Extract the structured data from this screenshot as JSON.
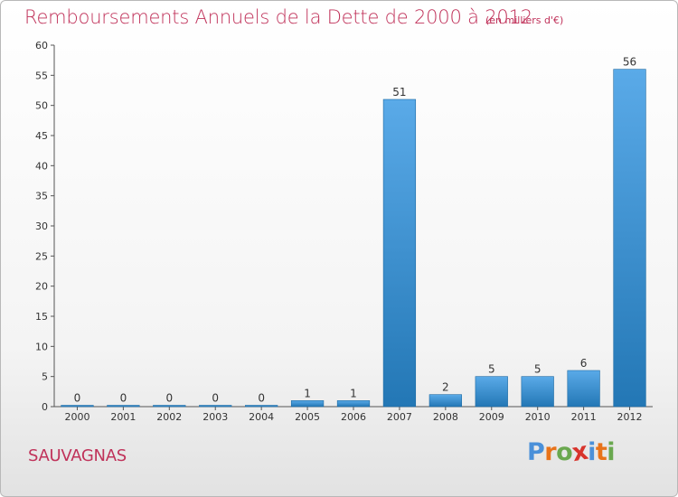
{
  "title": "Remboursements Annuels de la Dette de 2000 à 2012",
  "subtitle": "(en milliers d'€)",
  "commune": "SAUVAGNAS",
  "logo": {
    "text": "Proxiti",
    "letter_colors": [
      "#4a90d9",
      "#e8731a",
      "#6aa84f",
      "#d8342c",
      "#4a90d9",
      "#e8731a",
      "#6aa84f"
    ]
  },
  "colors": {
    "title": "#c0325a",
    "bar_light": "#5aaae8",
    "bar_dark": "#2377b5"
  },
  "chart_data": {
    "type": "bar",
    "categories": [
      "2000",
      "2001",
      "2002",
      "2003",
      "2004",
      "2005",
      "2006",
      "2007",
      "2008",
      "2009",
      "2010",
      "2011",
      "2012"
    ],
    "values": [
      0,
      0,
      0,
      0,
      0,
      1,
      1,
      51,
      2,
      5,
      5,
      6,
      56
    ],
    "title": "Remboursements Annuels de la Dette de 2000 à 2012",
    "subtitle": "(en milliers d'€)",
    "xlabel": "",
    "ylabel": "",
    "ylim": [
      0,
      60
    ],
    "yticks": [
      0,
      5,
      10,
      15,
      20,
      25,
      30,
      35,
      40,
      45,
      50,
      55,
      60
    ],
    "grid": false,
    "legend": "none"
  }
}
